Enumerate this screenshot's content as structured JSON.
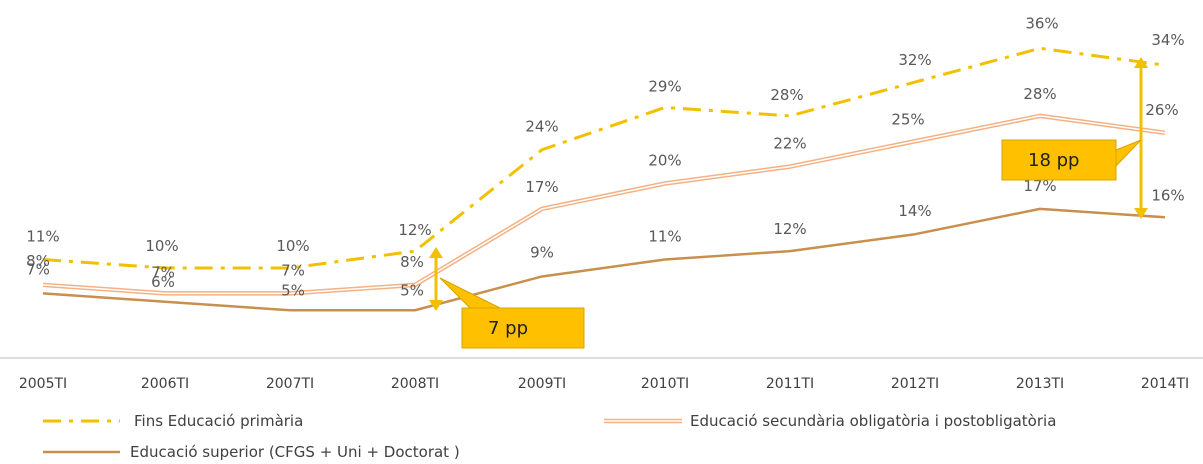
{
  "chart_data": {
    "type": "line",
    "title": "",
    "xlabel": "",
    "ylabel": "",
    "ylim": [
      3,
      38
    ],
    "grid": false,
    "legend_position": "bottom",
    "categories": [
      "2005TI",
      "2006TI",
      "2007TI",
      "2008TI",
      "2009TI",
      "2010TI",
      "2011TI",
      "2012TI",
      "2013TI",
      "2014TI"
    ],
    "series": [
      {
        "name": "Fins Educació primària",
        "color": "#F2C000",
        "style": "dash-dot",
        "values": [
          11,
          10,
          10,
          12,
          24,
          29,
          28,
          32,
          36,
          34
        ],
        "labels": [
          "11%",
          "10%",
          "10%",
          "12%",
          "24%",
          "29%",
          "28%",
          "32%",
          "36%",
          "34%"
        ]
      },
      {
        "name": "Educació secundària obligatòria i postobligatòria",
        "color": "#F4B183",
        "style": "double",
        "values": [
          8,
          7,
          7,
          8,
          17,
          20,
          22,
          25,
          28,
          26
        ],
        "labels": [
          "8%",
          "7%",
          "7%",
          "8%",
          "17%",
          "20%",
          "22%",
          "25%",
          "28%",
          "26%"
        ]
      },
      {
        "name": "Educació superior (CFGS +  Uni + Doctorat )",
        "color": "#C98F4E",
        "style": "solid",
        "values": [
          7,
          6,
          5,
          5,
          9,
          11,
          12,
          14,
          17,
          16
        ],
        "labels": [
          "7%",
          "6%",
          "5%",
          "5%",
          "9%",
          "11%",
          "12%",
          "14%",
          "17%",
          "16%"
        ]
      }
    ],
    "annotations": [
      {
        "text": "7 pp",
        "category": "2008TI",
        "from_value": 12,
        "to_value": 5
      },
      {
        "text": "18 pp",
        "category": "2014TI",
        "from_value": 34,
        "to_value": 16
      }
    ],
    "colors": {
      "callout_fill": "#FFC000",
      "callout_border": "#D9A400",
      "arrow": "#F2C000",
      "axis": "#BFBFBF"
    }
  }
}
